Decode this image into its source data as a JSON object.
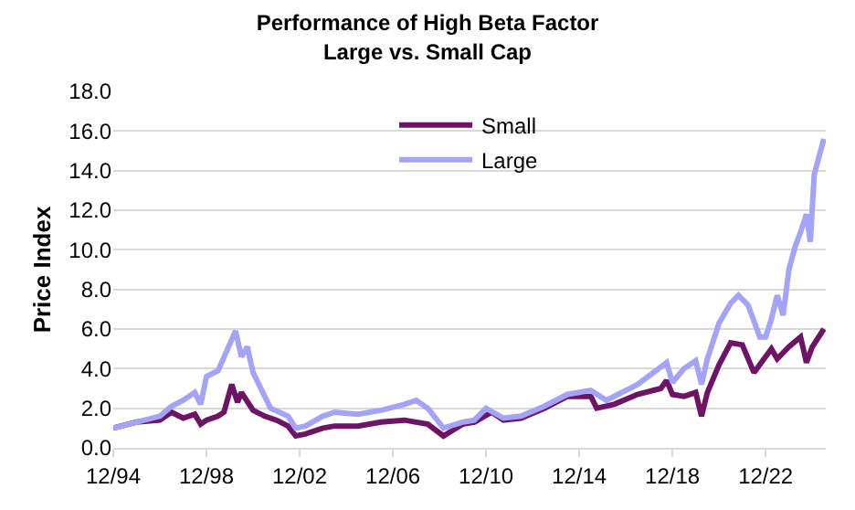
{
  "chart_data": {
    "type": "line",
    "title": "Performance of High Beta Factor",
    "subtitle": "Large vs. Small Cap",
    "ylabel": "Price Index",
    "xlim": [
      "1994-12",
      "2025-07"
    ],
    "xticks": [
      {
        "value": "1994-12",
        "label": "12/94"
      },
      {
        "value": "1998-12",
        "label": "12/98"
      },
      {
        "value": "2002-12",
        "label": "12/02"
      },
      {
        "value": "2006-12",
        "label": "12/06"
      },
      {
        "value": "2010-12",
        "label": "12/10"
      },
      {
        "value": "2014-12",
        "label": "12/14"
      },
      {
        "value": "2018-12",
        "label": "12/18"
      },
      {
        "value": "2022-12",
        "label": "12/22"
      }
    ],
    "ylim": [
      0,
      18
    ],
    "yticks": [
      {
        "value": 0,
        "label": "0.0"
      },
      {
        "value": 2,
        "label": "2.0"
      },
      {
        "value": 4,
        "label": "4.0"
      },
      {
        "value": 6,
        "label": "6.0"
      },
      {
        "value": 8,
        "label": "8.0"
      },
      {
        "value": 10,
        "label": "10.0"
      },
      {
        "value": 12,
        "label": "12.0"
      },
      {
        "value": 14,
        "label": "14.0"
      },
      {
        "value": 16,
        "label": "16.0"
      },
      {
        "value": 18,
        "label": "18.0"
      }
    ],
    "grid": "y",
    "legend": "top",
    "marker": "none",
    "line_style": "solid",
    "series": [
      {
        "name": "Small",
        "color": "#6e1466",
        "x": [
          "1994-12",
          "1995-12",
          "1996-12",
          "1997-06",
          "1997-12",
          "1998-06",
          "1998-09",
          "1998-12",
          "1999-06",
          "1999-09",
          "2000-01",
          "2000-04",
          "2000-06",
          "2000-12",
          "2001-06",
          "2001-12",
          "2002-06",
          "2002-10",
          "2003-03",
          "2003-12",
          "2004-06",
          "2005-06",
          "2006-06",
          "2007-06",
          "2008-06",
          "2009-02",
          "2009-12",
          "2010-06",
          "2011-03",
          "2011-09",
          "2012-06",
          "2013-06",
          "2014-06",
          "2015-06",
          "2015-09",
          "2016-06",
          "2017-06",
          "2018-06",
          "2018-09",
          "2018-12",
          "2019-06",
          "2019-12",
          "2020-03",
          "2020-06",
          "2020-12",
          "2021-06",
          "2021-12",
          "2022-06",
          "2022-12",
          "2023-03",
          "2023-06",
          "2023-12",
          "2024-06",
          "2024-09",
          "2024-12",
          "2025-06"
        ],
        "values": [
          1.0,
          1.3,
          1.4,
          1.8,
          1.5,
          1.7,
          1.2,
          1.4,
          1.6,
          1.8,
          3.2,
          2.3,
          2.8,
          1.9,
          1.6,
          1.4,
          1.1,
          0.6,
          0.7,
          1.0,
          1.1,
          1.1,
          1.3,
          1.4,
          1.2,
          0.6,
          1.2,
          1.3,
          1.8,
          1.4,
          1.5,
          2.0,
          2.6,
          2.6,
          2.0,
          2.2,
          2.7,
          3.0,
          3.4,
          2.7,
          2.6,
          2.8,
          1.6,
          2.8,
          4.2,
          5.3,
          5.2,
          3.8,
          4.6,
          5.0,
          4.5,
          5.1,
          5.6,
          4.3,
          5.1,
          6.0
        ]
      },
      {
        "name": "Large",
        "color": "#a3a3f7",
        "x": [
          "1994-12",
          "1995-12",
          "1996-12",
          "1997-06",
          "1997-12",
          "1998-06",
          "1998-09",
          "1998-12",
          "1999-06",
          "2000-03",
          "2000-06",
          "2000-09",
          "2000-12",
          "2001-06",
          "2001-09",
          "2002-06",
          "2002-10",
          "2003-03",
          "2003-12",
          "2004-06",
          "2005-06",
          "2006-06",
          "2007-06",
          "2007-12",
          "2008-06",
          "2009-02",
          "2009-12",
          "2010-06",
          "2010-12",
          "2011-09",
          "2012-06",
          "2013-06",
          "2014-06",
          "2015-06",
          "2016-02",
          "2017-06",
          "2018-09",
          "2018-12",
          "2019-06",
          "2019-12",
          "2020-03",
          "2020-06",
          "2020-12",
          "2021-06",
          "2021-10",
          "2022-03",
          "2022-09",
          "2022-12",
          "2023-03",
          "2023-06",
          "2023-09",
          "2023-12",
          "2024-03",
          "2024-06",
          "2024-09",
          "2024-11",
          "2025-01",
          "2025-06"
        ],
        "values": [
          1.0,
          1.3,
          1.6,
          2.1,
          2.4,
          2.8,
          2.2,
          3.6,
          3.9,
          5.9,
          4.6,
          5.1,
          3.8,
          2.6,
          2.0,
          1.6,
          1.0,
          1.1,
          1.6,
          1.8,
          1.7,
          1.9,
          2.2,
          2.4,
          2.0,
          1.0,
          1.3,
          1.4,
          2.0,
          1.5,
          1.6,
          2.1,
          2.7,
          2.9,
          2.4,
          3.2,
          4.3,
          3.3,
          4.0,
          4.4,
          3.2,
          4.5,
          6.3,
          7.3,
          7.7,
          7.2,
          5.6,
          5.6,
          6.5,
          7.7,
          6.7,
          9.0,
          10.1,
          10.9,
          11.8,
          10.4,
          13.8,
          15.6
        ]
      }
    ]
  }
}
